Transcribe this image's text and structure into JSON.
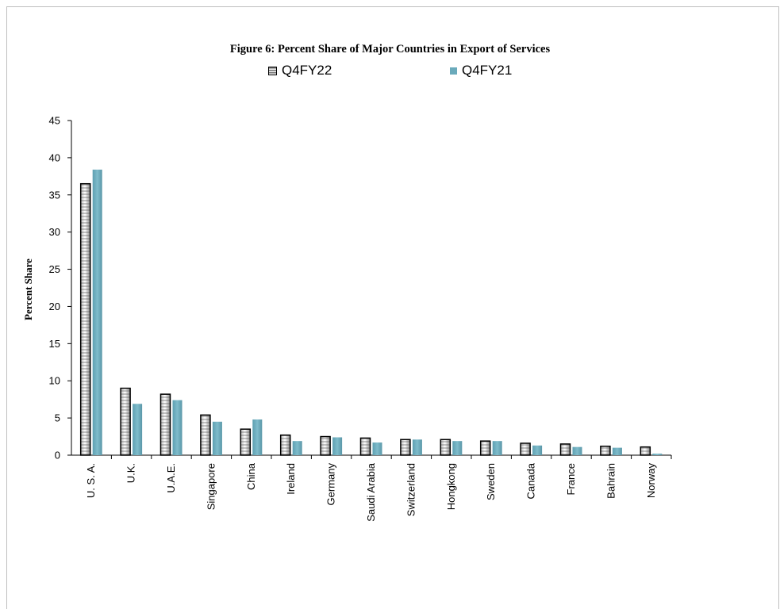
{
  "chart_data": {
    "type": "bar",
    "title": "Figure 6: Percent Share of Major Countries in Export of Services",
    "xlabel": "",
    "ylabel": "Percent Share",
    "ylim": [
      0,
      45
    ],
    "yticks": [
      0,
      5,
      10,
      15,
      20,
      25,
      30,
      35,
      40,
      45
    ],
    "categories": [
      "U. S. A.",
      "U.K.",
      "U.A.E.",
      "Singapore",
      "China",
      "Ireland",
      "Germany",
      "Saudi Arabia",
      "Switzerland",
      "Hongkong",
      "Sweden",
      "Canada",
      "France",
      "Bahrain",
      "Norway"
    ],
    "series": [
      {
        "name": "Q4FY22",
        "values": [
          36.5,
          9.0,
          8.2,
          5.4,
          3.5,
          2.7,
          2.5,
          2.3,
          2.1,
          2.1,
          1.9,
          1.6,
          1.5,
          1.2,
          1.1
        ],
        "color": "#000000"
      },
      {
        "name": "Q4FY21",
        "values": [
          38.4,
          6.9,
          7.4,
          4.5,
          4.8,
          1.9,
          2.4,
          1.7,
          2.1,
          1.9,
          1.9,
          1.3,
          1.1,
          1.0,
          0.2
        ],
        "color": "#6aaabb"
      }
    ],
    "legend_position": "top",
    "grid": false
  }
}
